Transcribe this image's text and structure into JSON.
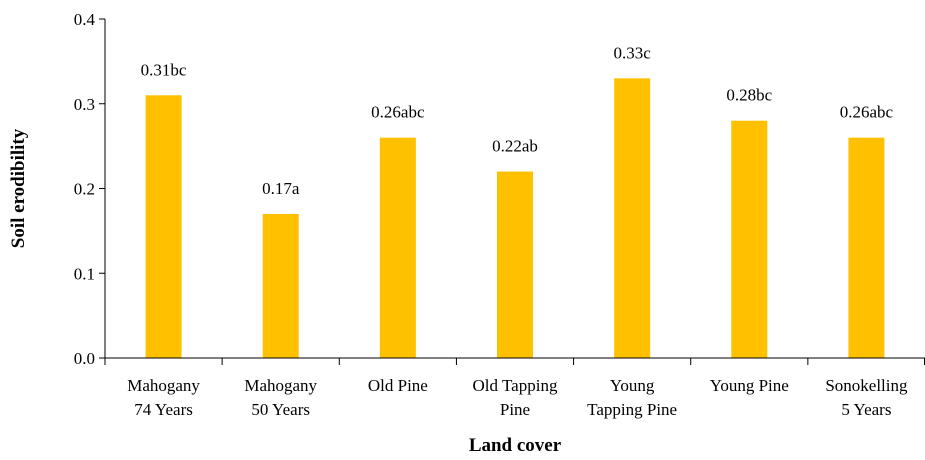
{
  "chart_data": {
    "type": "bar",
    "categories": [
      [
        "Mahogany",
        "74 Years"
      ],
      [
        "Mahogany",
        "50 Years"
      ],
      [
        "Old Pine"
      ],
      [
        "Old Tapping",
        "Pine"
      ],
      [
        "Young",
        "Tapping Pine"
      ],
      [
        "Young Pine"
      ],
      [
        "Sonokelling",
        "5 Years"
      ]
    ],
    "values": [
      0.31,
      0.17,
      0.26,
      0.22,
      0.33,
      0.28,
      0.26
    ],
    "data_labels": [
      "0.31bc",
      "0.17a",
      "0.26abc",
      "0.22ab",
      "0.33c",
      "0.28bc",
      "0.26abc"
    ],
    "xlabel": "Land cover",
    "ylabel": "Soil erodibility",
    "ylim": [
      0,
      0.4
    ],
    "yticks": [
      0,
      0.1,
      0.2,
      0.3,
      0.4
    ],
    "ytick_labels": [
      "0.0",
      "0.1",
      "0.2",
      "0.3",
      "0.4"
    ],
    "bar_color": "#FFC000",
    "grid": false,
    "legend": "none"
  }
}
